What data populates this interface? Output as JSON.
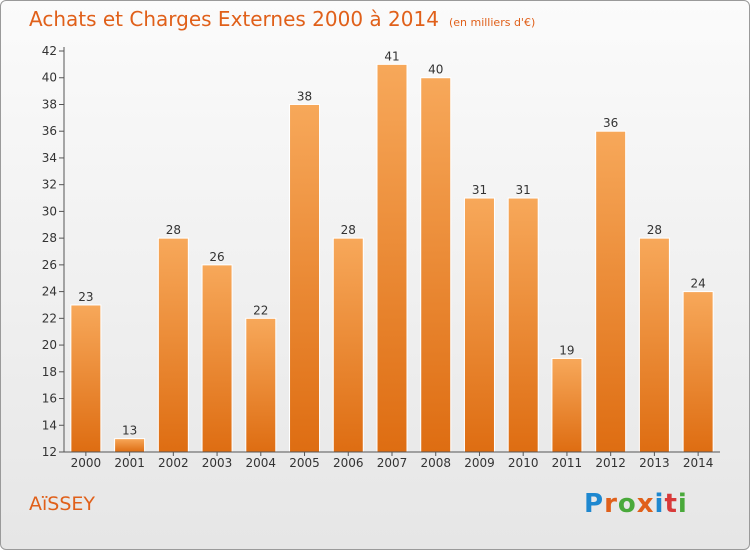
{
  "header": {
    "title": "Achats et Charges Externes 2000 à 2014",
    "unit": "(en milliers d'€)"
  },
  "footer": {
    "commune": "AïSSEY",
    "logo_text": "Proxiti",
    "logo_colors": [
      "#1e88d0",
      "#e0601a",
      "#49a93a",
      "#e0601a",
      "#1e88d0",
      "#d83a3a",
      "#49a93a"
    ]
  },
  "colors": {
    "bar_top": "#f7a85a",
    "bar_bottom": "#de6d12",
    "accent": "#e0601a"
  },
  "chart_data": {
    "type": "bar",
    "title": "Achats et Charges Externes 2000 à 2014",
    "subtitle": "(en milliers d'€)",
    "xlabel": "",
    "ylabel": "",
    "categories": [
      "2000",
      "2001",
      "2002",
      "2003",
      "2004",
      "2005",
      "2006",
      "2007",
      "2008",
      "2009",
      "2010",
      "2011",
      "2012",
      "2013",
      "2014"
    ],
    "values": [
      23,
      13,
      28,
      26,
      22,
      38,
      28,
      41,
      40,
      31,
      31,
      19,
      36,
      28,
      24
    ],
    "ylim": [
      12,
      42
    ],
    "yticks": [
      12,
      14,
      16,
      18,
      20,
      22,
      24,
      26,
      28,
      30,
      32,
      34,
      36,
      38,
      40,
      42
    ],
    "grid": false,
    "data_labels": true
  }
}
